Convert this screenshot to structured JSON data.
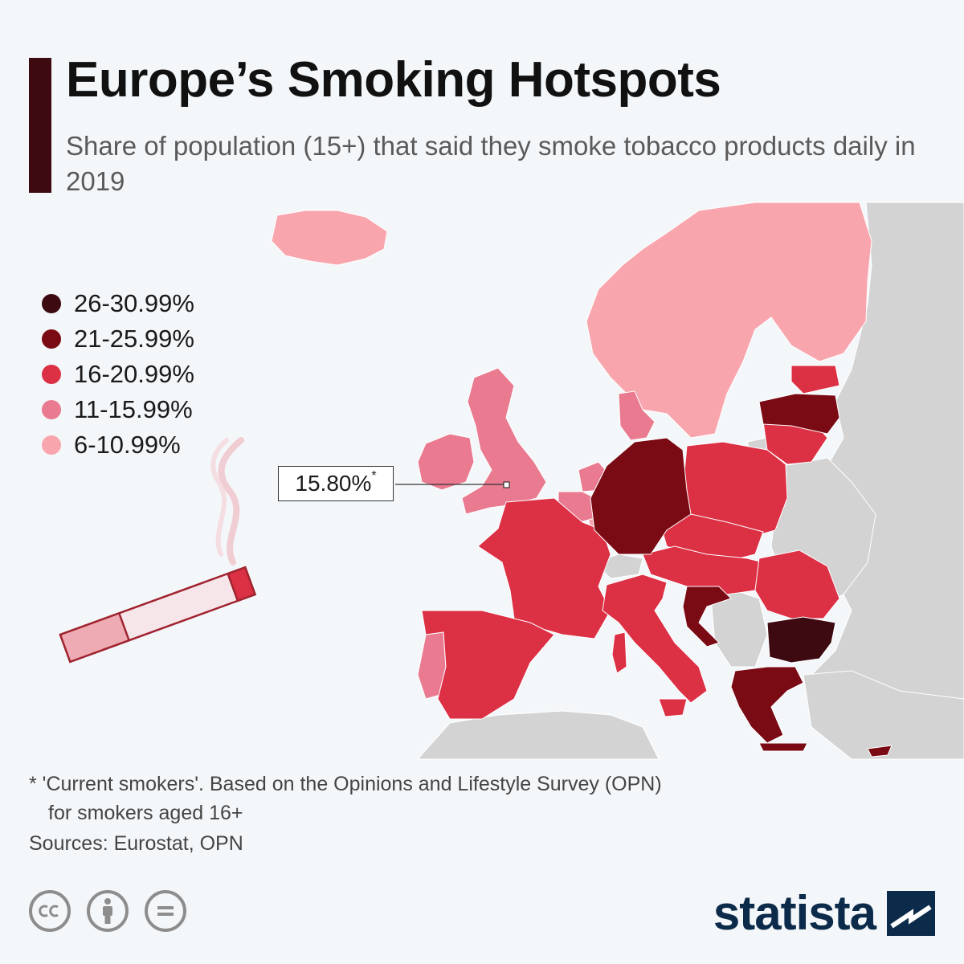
{
  "header": {
    "title": "Europe’s Smoking Hotspots",
    "subtitle": "Share of population (15+) that said they smoke tobacco products daily in 2019"
  },
  "legend": [
    {
      "label": "26-30.99%",
      "color": "#3d0a12"
    },
    {
      "label": "21-25.99%",
      "color": "#7a0a14"
    },
    {
      "label": "16-20.99%",
      "color": "#dc3045"
    },
    {
      "label": "11-15.99%",
      "color": "#e97a90"
    },
    {
      "label": "6-10.99%",
      "color": "#f8a5ad"
    }
  ],
  "callout": {
    "value": "15.80%",
    "mark": "*",
    "country": "United Kingdom"
  },
  "colors": {
    "nodata": "#d3d3d3",
    "background": "#f4f7fa",
    "brand": "#0c2b4a",
    "title_bar": "#3d0a12"
  },
  "countries": [
    {
      "name": "Iceland",
      "bracket": "6-10.99%"
    },
    {
      "name": "Norway",
      "bracket": "6-10.99%"
    },
    {
      "name": "Sweden",
      "bracket": "6-10.99%"
    },
    {
      "name": "Finland",
      "bracket": "6-10.99%"
    },
    {
      "name": "Estonia",
      "bracket": "16-20.99%"
    },
    {
      "name": "Latvia",
      "bracket": "21-25.99%"
    },
    {
      "name": "Lithuania",
      "bracket": "16-20.99%"
    },
    {
      "name": "Ireland",
      "bracket": "11-15.99%"
    },
    {
      "name": "United Kingdom",
      "bracket": "11-15.99%"
    },
    {
      "name": "Denmark",
      "bracket": "11-15.99%"
    },
    {
      "name": "Netherlands",
      "bracket": "11-15.99%"
    },
    {
      "name": "Belgium",
      "bracket": "11-15.99%"
    },
    {
      "name": "Luxembourg",
      "bracket": "6-10.99%"
    },
    {
      "name": "Germany",
      "bracket": "21-25.99%"
    },
    {
      "name": "Poland",
      "bracket": "16-20.99%"
    },
    {
      "name": "Czechia",
      "bracket": "16-20.99%"
    },
    {
      "name": "Slovakia",
      "bracket": "16-20.99%"
    },
    {
      "name": "Austria",
      "bracket": "16-20.99%"
    },
    {
      "name": "Hungary",
      "bracket": "16-20.99%"
    },
    {
      "name": "Slovenia",
      "bracket": "16-20.99%"
    },
    {
      "name": "Croatia",
      "bracket": "21-25.99%"
    },
    {
      "name": "Romania",
      "bracket": "16-20.99%"
    },
    {
      "name": "Bulgaria",
      "bracket": "26-30.99%"
    },
    {
      "name": "Greece",
      "bracket": "21-25.99%"
    },
    {
      "name": "Cyprus",
      "bracket": "21-25.99%"
    },
    {
      "name": "France",
      "bracket": "16-20.99%"
    },
    {
      "name": "Spain",
      "bracket": "16-20.99%"
    },
    {
      "name": "Portugal",
      "bracket": "11-15.99%"
    },
    {
      "name": "Italy",
      "bracket": "16-20.99%"
    },
    {
      "name": "Malta",
      "bracket": "16-20.99%"
    }
  ],
  "footnote": {
    "line1": "* 'Current smokers'. Based on the Opinions and Lifestyle Survey (OPN)",
    "line2": "for smokers aged 16+"
  },
  "sources": "Sources: Eurostat, OPN",
  "license": {
    "cc": "cc",
    "by": "by",
    "nd": "nd"
  },
  "brand": {
    "name": "statista"
  }
}
